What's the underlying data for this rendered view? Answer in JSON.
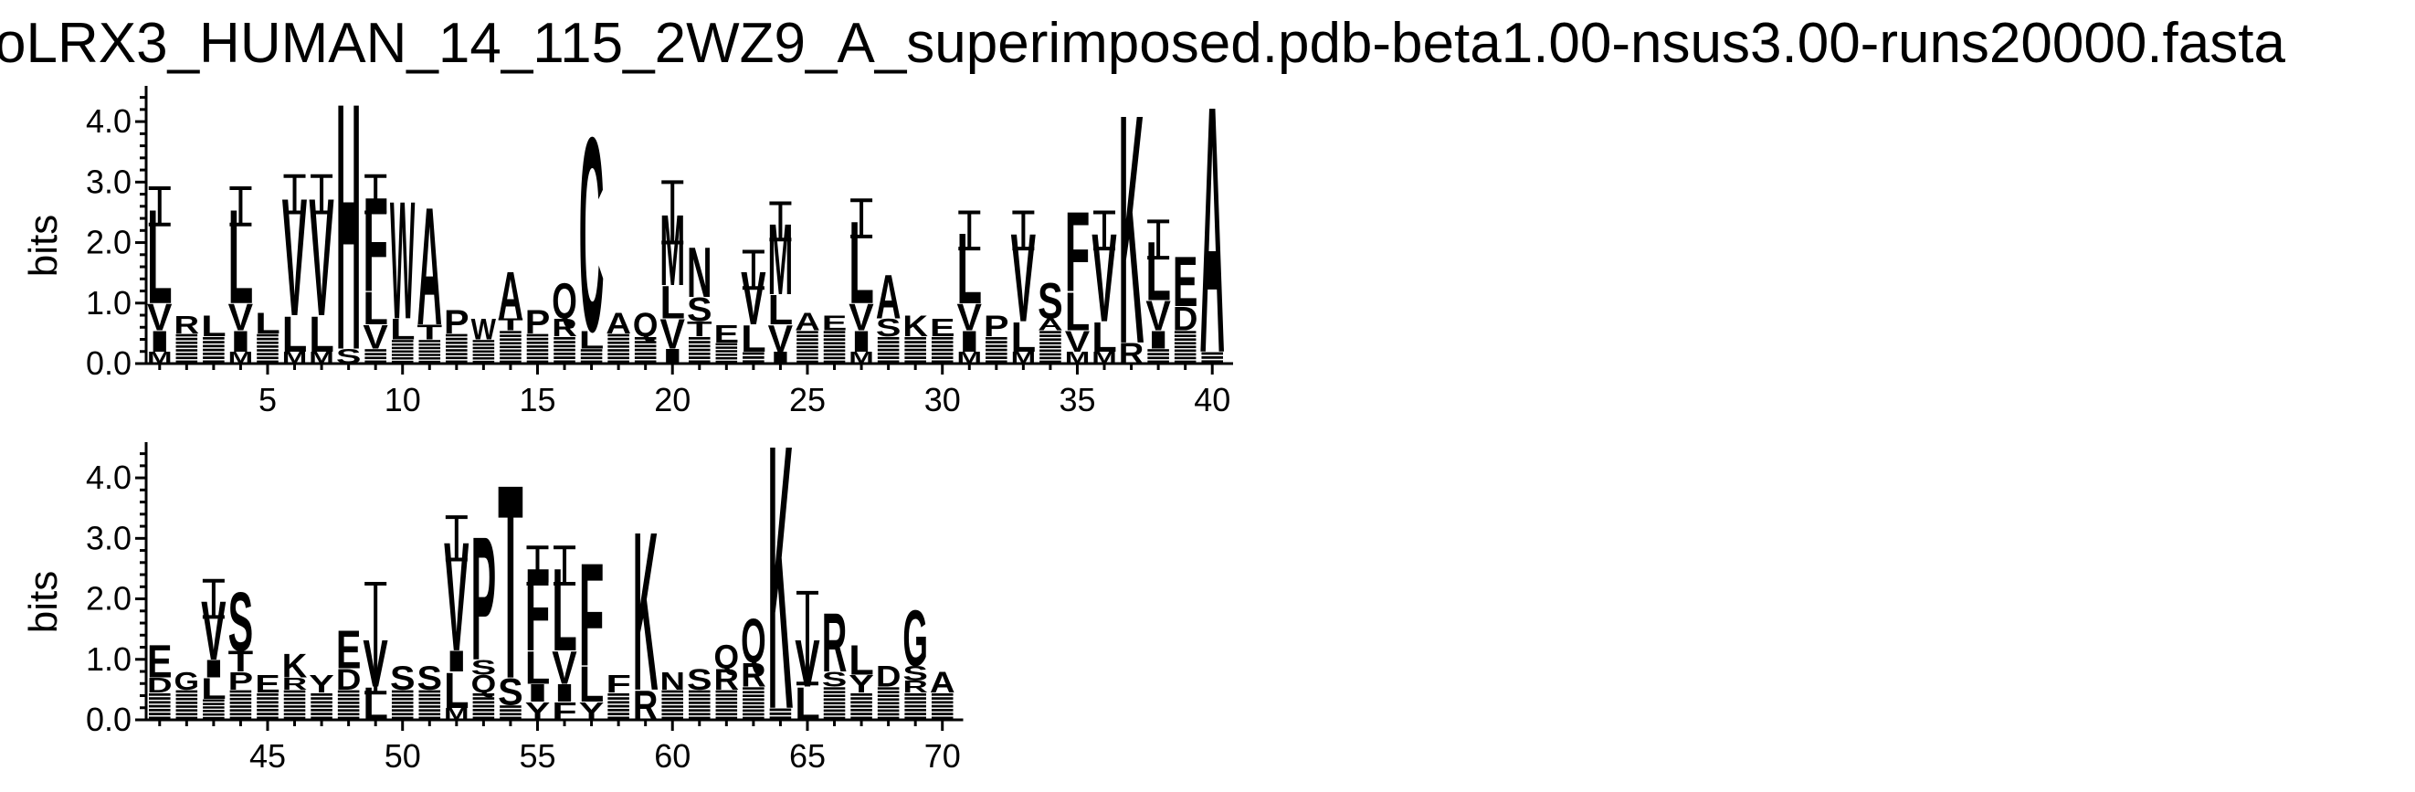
{
  "chart_data": {
    "type": "sequence-logo",
    "title": "oLRX3_HUMAN_14_115_2WZ9_A_superimposed.pdb-beta1.00-nsus3.00-runs20000.fasta",
    "ylabel": "bits",
    "ylim": [
      0,
      4.5
    ],
    "yticks": [
      "0.0",
      "1.0",
      "2.0",
      "3.0",
      "4.0"
    ],
    "rows": [
      {
        "xrange": [
          1,
          40
        ],
        "xticks": [
          5,
          10,
          15,
          20,
          25,
          30,
          35,
          40
        ]
      },
      {
        "xrange": [
          41,
          70
        ],
        "xticks": [
          45,
          50,
          55,
          60,
          65,
          70
        ]
      }
    ],
    "positions": [
      {
        "pos": 1,
        "stack": [
          [
            "M",
            0.2
          ],
          [
            "I",
            0.35
          ],
          [
            "V",
            0.45
          ],
          [
            "L",
            1.6
          ]
        ],
        "err": 0.3
      },
      {
        "pos": 2,
        "stack": [
          [
            "X",
            0.5
          ],
          [
            "R",
            0.3
          ]
        ]
      },
      {
        "pos": 3,
        "stack": [
          [
            "X",
            0.45
          ],
          [
            "L",
            0.35
          ]
        ]
      },
      {
        "pos": 4,
        "stack": [
          [
            "M",
            0.2
          ],
          [
            "I",
            0.35
          ],
          [
            "V",
            0.45
          ],
          [
            "L",
            1.6
          ]
        ],
        "err": 0.3
      },
      {
        "pos": 5,
        "stack": [
          [
            "X",
            0.5
          ],
          [
            "L",
            0.35
          ]
        ]
      },
      {
        "pos": 6,
        "stack": [
          [
            "M",
            0.2
          ],
          [
            "L",
            0.6
          ],
          [
            "V",
            2.0
          ]
        ],
        "err": 0.3
      },
      {
        "pos": 7,
        "stack": [
          [
            "M",
            0.2
          ],
          [
            "L",
            0.6
          ],
          [
            "V",
            2.0
          ]
        ],
        "err": 0.3
      },
      {
        "pos": 8,
        "stack": [
          [
            "S",
            0.25
          ],
          [
            "H",
            4.2
          ]
        ]
      },
      {
        "pos": 9,
        "stack": [
          [
            "X",
            0.25
          ],
          [
            "V",
            0.4
          ],
          [
            "L",
            0.55
          ],
          [
            "F",
            1.6
          ]
        ],
        "err": 0.3
      },
      {
        "pos": 10,
        "stack": [
          [
            "X",
            0.4
          ],
          [
            "L",
            0.35
          ],
          [
            "W",
            2.0
          ]
        ]
      },
      {
        "pos": 11,
        "stack": [
          [
            "X",
            0.4
          ],
          [
            "T",
            0.25
          ],
          [
            "A",
            2.0
          ]
        ]
      },
      {
        "pos": 12,
        "stack": [
          [
            "X",
            0.5
          ],
          [
            "P",
            0.4
          ]
        ]
      },
      {
        "pos": 13,
        "stack": [
          [
            "X",
            0.4
          ],
          [
            "W",
            0.35
          ]
        ]
      },
      {
        "pos": 14,
        "stack": [
          [
            "X",
            0.55
          ],
          [
            "T",
            0.2
          ],
          [
            "A",
            0.8
          ]
        ]
      },
      {
        "pos": 15,
        "stack": [
          [
            "X",
            0.5
          ],
          [
            "P",
            0.4
          ]
        ]
      },
      {
        "pos": 16,
        "stack": [
          [
            "X",
            0.45
          ],
          [
            "R",
            0.3
          ],
          [
            "Q",
            0.6
          ]
        ]
      },
      {
        "pos": 17,
        "stack": [
          [
            "X",
            0.25
          ],
          [
            "L",
            0.3
          ],
          [
            "C",
            3.3
          ]
        ]
      },
      {
        "pos": 18,
        "stack": [
          [
            "X",
            0.5
          ],
          [
            "A",
            0.35
          ]
        ]
      },
      {
        "pos": 19,
        "stack": [
          [
            "X",
            0.45
          ],
          [
            "Q",
            0.4
          ]
        ]
      },
      {
        "pos": 20,
        "stack": [
          [
            "I",
            0.25
          ],
          [
            "V",
            0.5
          ],
          [
            "L",
            0.55
          ],
          [
            "M",
            1.2
          ]
        ],
        "err": 0.5
      },
      {
        "pos": 21,
        "stack": [
          [
            "X",
            0.45
          ],
          [
            "T",
            0.25
          ],
          [
            "S",
            0.4
          ],
          [
            "N",
            0.85
          ]
        ]
      },
      {
        "pos": 22,
        "stack": [
          [
            "X",
            0.35
          ],
          [
            "E",
            0.3
          ]
        ]
      },
      {
        "pos": 23,
        "stack": [
          [
            "X",
            0.2
          ],
          [
            "L",
            0.45
          ],
          [
            "V",
            0.9
          ]
        ],
        "err": 0.3
      },
      {
        "pos": 24,
        "stack": [
          [
            "I",
            0.2
          ],
          [
            "V",
            0.45
          ],
          [
            "L",
            0.5
          ],
          [
            "M",
            1.2
          ]
        ],
        "err": 0.3
      },
      {
        "pos": 25,
        "stack": [
          [
            "X",
            0.55
          ],
          [
            "A",
            0.3
          ]
        ]
      },
      {
        "pos": 26,
        "stack": [
          [
            "X",
            0.55
          ],
          [
            "E",
            0.25
          ]
        ]
      },
      {
        "pos": 27,
        "stack": [
          [
            "M",
            0.2
          ],
          [
            "I",
            0.35
          ],
          [
            "V",
            0.45
          ],
          [
            "L",
            1.4
          ]
        ],
        "err": 0.3
      },
      {
        "pos": 28,
        "stack": [
          [
            "X",
            0.45
          ],
          [
            "S",
            0.3
          ],
          [
            "A",
            0.75
          ]
        ]
      },
      {
        "pos": 29,
        "stack": [
          [
            "X",
            0.45
          ],
          [
            "K",
            0.35
          ]
        ]
      },
      {
        "pos": 30,
        "stack": [
          [
            "X",
            0.45
          ],
          [
            "E",
            0.3
          ]
        ]
      },
      {
        "pos": 31,
        "stack": [
          [
            "M",
            0.2
          ],
          [
            "I",
            0.35
          ],
          [
            "V",
            0.45
          ],
          [
            "L",
            1.2
          ]
        ],
        "err": 0.3
      },
      {
        "pos": 32,
        "stack": [
          [
            "X",
            0.45
          ],
          [
            "P",
            0.35
          ]
        ]
      },
      {
        "pos": 33,
        "stack": [
          [
            "M",
            0.2
          ],
          [
            "L",
            0.5
          ],
          [
            "V",
            1.5
          ]
        ],
        "err": 0.3
      },
      {
        "pos": 34,
        "stack": [
          [
            "X",
            0.55
          ],
          [
            "A",
            0.2
          ],
          [
            "S",
            0.6
          ]
        ]
      },
      {
        "pos": 35,
        "stack": [
          [
            "M",
            0.2
          ],
          [
            "V",
            0.35
          ],
          [
            "L",
            0.65
          ],
          [
            "F",
            1.35
          ]
        ]
      },
      {
        "pos": 36,
        "stack": [
          [
            "M",
            0.2
          ],
          [
            "L",
            0.5
          ],
          [
            "V",
            1.5
          ]
        ],
        "err": 0.3
      },
      {
        "pos": 37,
        "stack": [
          [
            "R",
            0.35
          ],
          [
            "K",
            3.9
          ]
        ]
      },
      {
        "pos": 38,
        "stack": [
          [
            "X",
            0.25
          ],
          [
            "I",
            0.3
          ],
          [
            "V",
            0.5
          ],
          [
            "L",
            1.0
          ]
        ],
        "err": 0.3
      },
      {
        "pos": 39,
        "stack": [
          [
            "X",
            0.55
          ],
          [
            "D",
            0.4
          ],
          [
            "E",
            0.85
          ]
        ]
      },
      {
        "pos": 40,
        "stack": [
          [
            "X",
            0.2
          ],
          [
            "A",
            4.2
          ]
        ]
      },
      {
        "pos": 41,
        "stack": [
          [
            "X",
            0.45
          ],
          [
            "D",
            0.25
          ],
          [
            "E",
            0.55
          ]
        ]
      },
      {
        "pos": 42,
        "stack": [
          [
            "X",
            0.5
          ],
          [
            "G",
            0.3
          ]
        ]
      },
      {
        "pos": 43,
        "stack": [
          [
            "X",
            0.35
          ],
          [
            "L",
            0.35
          ],
          [
            "I",
            0.3
          ],
          [
            "V",
            1.0
          ]
        ],
        "err": 0.3
      },
      {
        "pos": 44,
        "stack": [
          [
            "X",
            0.5
          ],
          [
            "P",
            0.3
          ],
          [
            "T",
            0.35
          ],
          [
            "S",
            1.0
          ]
        ]
      },
      {
        "pos": 45,
        "stack": [
          [
            "X",
            0.45
          ],
          [
            "E",
            0.3
          ]
        ]
      },
      {
        "pos": 46,
        "stack": [
          [
            "X",
            0.5
          ],
          [
            "R",
            0.2
          ],
          [
            "K",
            0.4
          ]
        ]
      },
      {
        "pos": 47,
        "stack": [
          [
            "X",
            0.45
          ],
          [
            "Y",
            0.3
          ]
        ]
      },
      {
        "pos": 48,
        "stack": [
          [
            "X",
            0.5
          ],
          [
            "D",
            0.35
          ],
          [
            "E",
            0.65
          ]
        ]
      },
      {
        "pos": 49,
        "stack": [
          [
            "L",
            0.55
          ],
          [
            "V",
            0.8
          ]
        ],
        "err": 0.9
      },
      {
        "pos": 50,
        "stack": [
          [
            "X",
            0.5
          ],
          [
            "S",
            0.4
          ]
        ]
      },
      {
        "pos": 51,
        "stack": [
          [
            "X",
            0.5
          ],
          [
            "S",
            0.4
          ]
        ]
      },
      {
        "pos": 52,
        "stack": [
          [
            "M",
            0.2
          ],
          [
            "L",
            0.6
          ],
          [
            "I",
            0.35
          ],
          [
            "V",
            1.85
          ]
        ],
        "err": 0.35
      },
      {
        "pos": 53,
        "stack": [
          [
            "X",
            0.45
          ],
          [
            "Q",
            0.3
          ],
          [
            "S",
            0.25
          ],
          [
            "P",
            2.1
          ]
        ]
      },
      {
        "pos": 54,
        "stack": [
          [
            "X",
            0.25
          ],
          [
            "S",
            0.45
          ],
          [
            "T",
            3.3
          ]
        ]
      },
      {
        "pos": 55,
        "stack": [
          [
            "Y",
            0.3
          ],
          [
            "I",
            0.3
          ],
          [
            "L",
            0.55
          ],
          [
            "F",
            1.4
          ]
        ],
        "err": 0.3
      },
      {
        "pos": 56,
        "stack": [
          [
            "F",
            0.3
          ],
          [
            "I",
            0.3
          ],
          [
            "V",
            0.55
          ],
          [
            "L",
            1.4
          ]
        ],
        "err": 0.3
      },
      {
        "pos": 57,
        "stack": [
          [
            "Y",
            0.3
          ],
          [
            "L",
            0.6
          ],
          [
            "F",
            1.75
          ]
        ]
      },
      {
        "pos": 58,
        "stack": [
          [
            "X",
            0.45
          ],
          [
            "F",
            0.3
          ]
        ]
      },
      {
        "pos": 59,
        "stack": [
          [
            "R",
            0.5
          ],
          [
            "K",
            2.7
          ]
        ]
      },
      {
        "pos": 60,
        "stack": [
          [
            "X",
            0.5
          ],
          [
            "N",
            0.3
          ]
        ]
      },
      {
        "pos": 61,
        "stack": [
          [
            "X",
            0.5
          ],
          [
            "S",
            0.35
          ]
        ]
      },
      {
        "pos": 62,
        "stack": [
          [
            "X",
            0.5
          ],
          [
            "R",
            0.35
          ],
          [
            "Q",
            0.4
          ]
        ]
      },
      {
        "pos": 63,
        "stack": [
          [
            "X",
            0.55
          ],
          [
            "R",
            0.4
          ],
          [
            "Q",
            0.75
          ]
        ]
      },
      {
        "pos": 64,
        "stack": [
          [
            "X",
            0.2
          ],
          [
            "K",
            4.5
          ]
        ]
      },
      {
        "pos": 65,
        "stack": [
          [
            "L",
            0.55
          ],
          [
            "V",
            0.8
          ]
        ],
        "err": 0.75
      },
      {
        "pos": 66,
        "stack": [
          [
            "X",
            0.55
          ],
          [
            "S",
            0.25
          ],
          [
            "R",
            1.0
          ]
        ]
      },
      {
        "pos": 67,
        "stack": [
          [
            "X",
            0.45
          ],
          [
            "Y",
            0.3
          ],
          [
            "L",
            0.5
          ]
        ]
      },
      {
        "pos": 68,
        "stack": [
          [
            "X",
            0.55
          ],
          [
            "D",
            0.35
          ]
        ]
      },
      {
        "pos": 69,
        "stack": [
          [
            "X",
            0.45
          ],
          [
            "R",
            0.2
          ],
          [
            "S",
            0.25
          ],
          [
            "G",
            0.95
          ]
        ]
      },
      {
        "pos": 70,
        "stack": [
          [
            "X",
            0.45
          ],
          [
            "A",
            0.35
          ]
        ]
      }
    ]
  }
}
